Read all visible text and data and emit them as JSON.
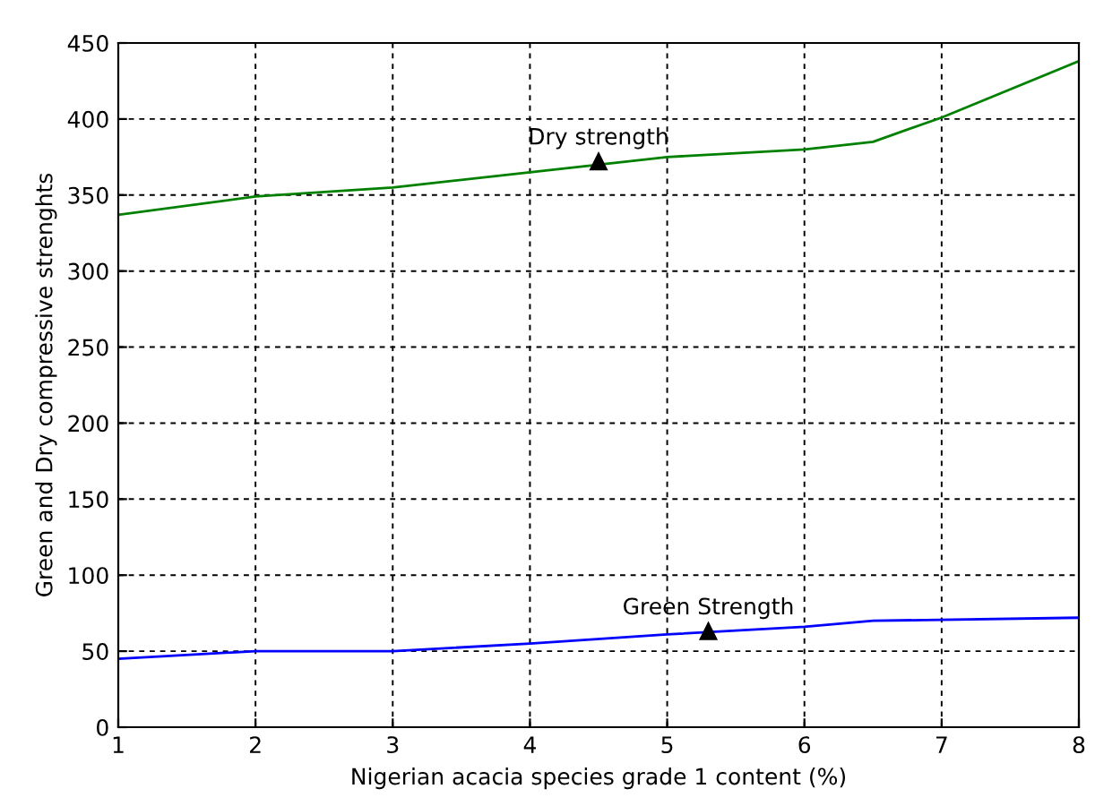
{
  "chart_data": {
    "type": "line",
    "xlabel": "Nigerian acacia species grade 1 content (%)",
    "ylabel": "Green and Dry compressive strenghts",
    "series": [
      {
        "color": "#008000",
        "x": [
          1,
          2,
          3,
          4,
          5,
          6,
          6.5,
          7,
          8
        ],
        "values": [
          337,
          349,
          355,
          365,
          375,
          380,
          385,
          401,
          438
        ]
      },
      {
        "color": "#0000ff",
        "x": [
          1,
          2,
          3,
          4,
          5,
          6,
          6.5,
          8
        ],
        "values": [
          45,
          50,
          50,
          55,
          61,
          66,
          70,
          72
        ]
      }
    ],
    "annotations": [
      {
        "text": "Dry strength",
        "x": 4.5,
        "y": 372
      },
      {
        "text": "Green Strength",
        "x": 5.3,
        "y": 63
      }
    ],
    "xlim": [
      1,
      8
    ],
    "xticks": [
      1,
      2,
      3,
      4,
      5,
      6,
      7,
      8
    ],
    "ylim": [
      0,
      450
    ],
    "yticks": [
      0,
      50,
      100,
      150,
      200,
      250,
      300,
      350,
      400,
      450
    ],
    "grid": true,
    "line_style": "solid"
  }
}
